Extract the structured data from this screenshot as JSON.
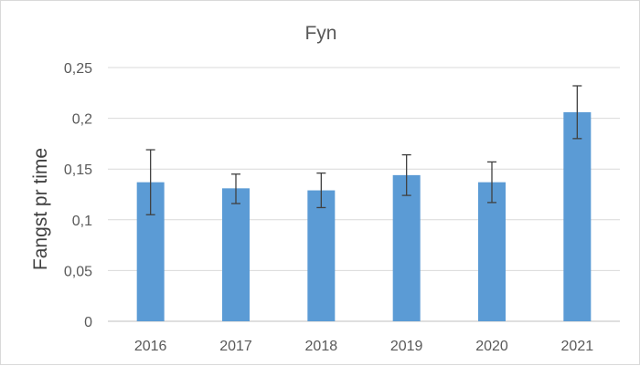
{
  "chart_data": {
    "type": "bar",
    "title": "Fyn",
    "xlabel": "",
    "ylabel": "Fangst pr time",
    "categories": [
      "2016",
      "2017",
      "2018",
      "2019",
      "2020",
      "2021"
    ],
    "values": [
      0.137,
      0.131,
      0.129,
      0.144,
      0.137,
      0.206
    ],
    "error_low": [
      0.105,
      0.116,
      0.112,
      0.124,
      0.117,
      0.18
    ],
    "error_high": [
      0.169,
      0.145,
      0.146,
      0.164,
      0.157,
      0.232
    ],
    "ylim": [
      0,
      0.25
    ],
    "yticks": [
      0,
      0.05,
      0.1,
      0.15,
      0.2,
      0.25
    ],
    "ytick_labels": [
      "0",
      "0,05",
      "0,1",
      "0,15",
      "0,2",
      "0,25"
    ],
    "grid": true,
    "legend": "none",
    "colors": {
      "bar": "#5b9bd5",
      "error_bar": "#404040",
      "grid": "#d9d9d9"
    }
  }
}
